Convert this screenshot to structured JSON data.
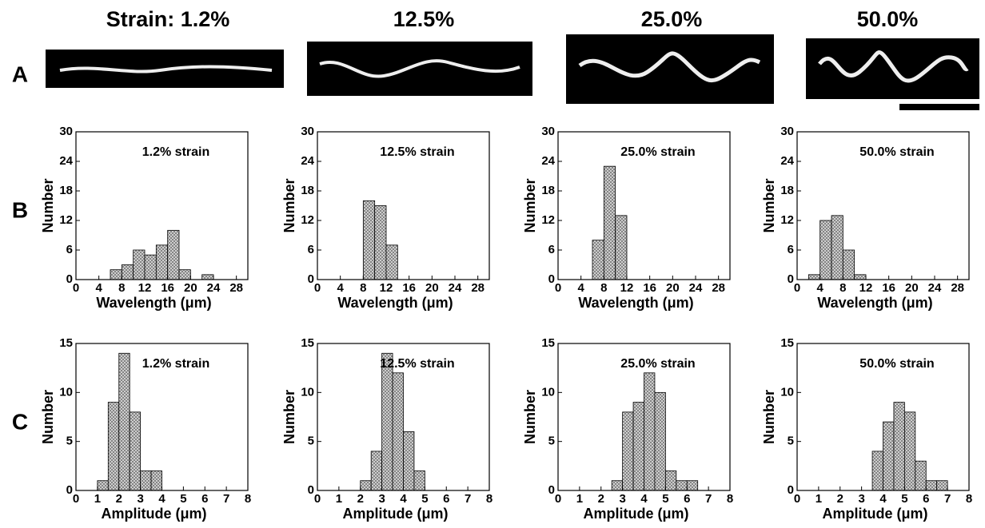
{
  "header": [
    "Strain: 1.2%",
    "12.5%",
    "25.0%",
    "50.0%"
  ],
  "row_labels": [
    "A",
    "B",
    "C"
  ],
  "chart_data": [
    {
      "type": "histogram",
      "annotation": "1.2% strain",
      "xlabel": "Wavelength (μm)",
      "ylabel": "Number",
      "color": "#d8d8d8",
      "bins": [
        6,
        8,
        10,
        12,
        14,
        16,
        18,
        20,
        22,
        24
      ],
      "values": [
        2,
        3,
        6,
        5,
        7,
        10,
        2,
        0,
        1
      ],
      "xlim": [
        0,
        30
      ],
      "xticks": [
        0,
        4,
        8,
        12,
        16,
        20,
        24,
        28
      ],
      "ylim": [
        0,
        30
      ],
      "yticks": [
        0,
        6,
        12,
        18,
        24,
        30
      ]
    },
    {
      "type": "histogram",
      "annotation": "12.5% strain",
      "xlabel": "Wavelength (μm)",
      "ylabel": "Number",
      "color": "#d8d8d8",
      "bins": [
        8,
        10,
        12,
        14
      ],
      "values": [
        16,
        15,
        7
      ],
      "xlim": [
        0,
        30
      ],
      "xticks": [
        0,
        4,
        8,
        12,
        16,
        20,
        24,
        28
      ],
      "ylim": [
        0,
        30
      ],
      "yticks": [
        0,
        6,
        12,
        18,
        24,
        30
      ]
    },
    {
      "type": "histogram",
      "annotation": "25.0% strain",
      "xlabel": "Wavelength (μm)",
      "ylabel": "Number",
      "color": "#d8d8d8",
      "bins": [
        6,
        8,
        10,
        12
      ],
      "values": [
        8,
        23,
        13
      ],
      "xlim": [
        0,
        30
      ],
      "xticks": [
        0,
        4,
        8,
        12,
        16,
        20,
        24,
        28
      ],
      "ylim": [
        0,
        30
      ],
      "yticks": [
        0,
        6,
        12,
        18,
        24,
        30
      ]
    },
    {
      "type": "histogram",
      "annotation": "50.0% strain",
      "xlabel": "Wavelength (μm)",
      "ylabel": "Number",
      "color": "#d8d8d8",
      "bins": [
        2,
        4,
        6,
        8,
        10,
        12
      ],
      "values": [
        1,
        12,
        13,
        6,
        1
      ],
      "xlim": [
        0,
        30
      ],
      "xticks": [
        0,
        4,
        8,
        12,
        16,
        20,
        24,
        28
      ],
      "ylim": [
        0,
        30
      ],
      "yticks": [
        0,
        6,
        12,
        18,
        24,
        30
      ]
    },
    {
      "type": "histogram",
      "annotation": "1.2% strain",
      "xlabel": "Amplitude (μm)",
      "ylabel": "Number",
      "color": "#d8d8d8",
      "bins": [
        1,
        1.5,
        2,
        2.5,
        3,
        3.5,
        4
      ],
      "values": [
        1,
        9,
        14,
        8,
        2,
        2
      ],
      "xlim": [
        0,
        8
      ],
      "xticks": [
        0,
        1,
        2,
        3,
        4,
        5,
        6,
        7,
        8
      ],
      "ylim": [
        0,
        15
      ],
      "yticks": [
        0,
        5,
        10,
        15
      ]
    },
    {
      "type": "histogram",
      "annotation": "12.5% strain",
      "xlabel": "Amplitude (μm)",
      "ylabel": "Number",
      "color": "#d8d8d8",
      "bins": [
        2,
        2.5,
        3,
        3.5,
        4,
        4.5,
        5
      ],
      "values": [
        1,
        4,
        14,
        12,
        6,
        2
      ],
      "xlim": [
        0,
        8
      ],
      "xticks": [
        0,
        1,
        2,
        3,
        4,
        5,
        6,
        7,
        8
      ],
      "ylim": [
        0,
        15
      ],
      "yticks": [
        0,
        5,
        10,
        15
      ]
    },
    {
      "type": "histogram",
      "annotation": "25.0% strain",
      "xlabel": "Amplitude (μm)",
      "ylabel": "Number",
      "color": "#d8d8d8",
      "bins": [
        2.5,
        3,
        3.5,
        4,
        4.5,
        5,
        5.5,
        6,
        6.5
      ],
      "values": [
        1,
        8,
        9,
        12,
        10,
        2,
        1,
        1
      ],
      "xlim": [
        0,
        8
      ],
      "xticks": [
        0,
        1,
        2,
        3,
        4,
        5,
        6,
        7,
        8
      ],
      "ylim": [
        0,
        15
      ],
      "yticks": [
        0,
        5,
        10,
        15
      ]
    },
    {
      "type": "histogram",
      "annotation": "50.0% strain",
      "xlabel": "Amplitude (μm)",
      "ylabel": "Number",
      "color": "#d8d8d8",
      "bins": [
        3.5,
        4,
        4.5,
        5,
        5.5,
        6,
        6.5,
        7
      ],
      "values": [
        4,
        7,
        9,
        8,
        3,
        1,
        1
      ],
      "xlim": [
        0,
        8
      ],
      "xticks": [
        0,
        1,
        2,
        3,
        4,
        5,
        6,
        7,
        8
      ],
      "ylim": [
        0,
        15
      ],
      "yticks": [
        0,
        5,
        10,
        15
      ]
    }
  ]
}
